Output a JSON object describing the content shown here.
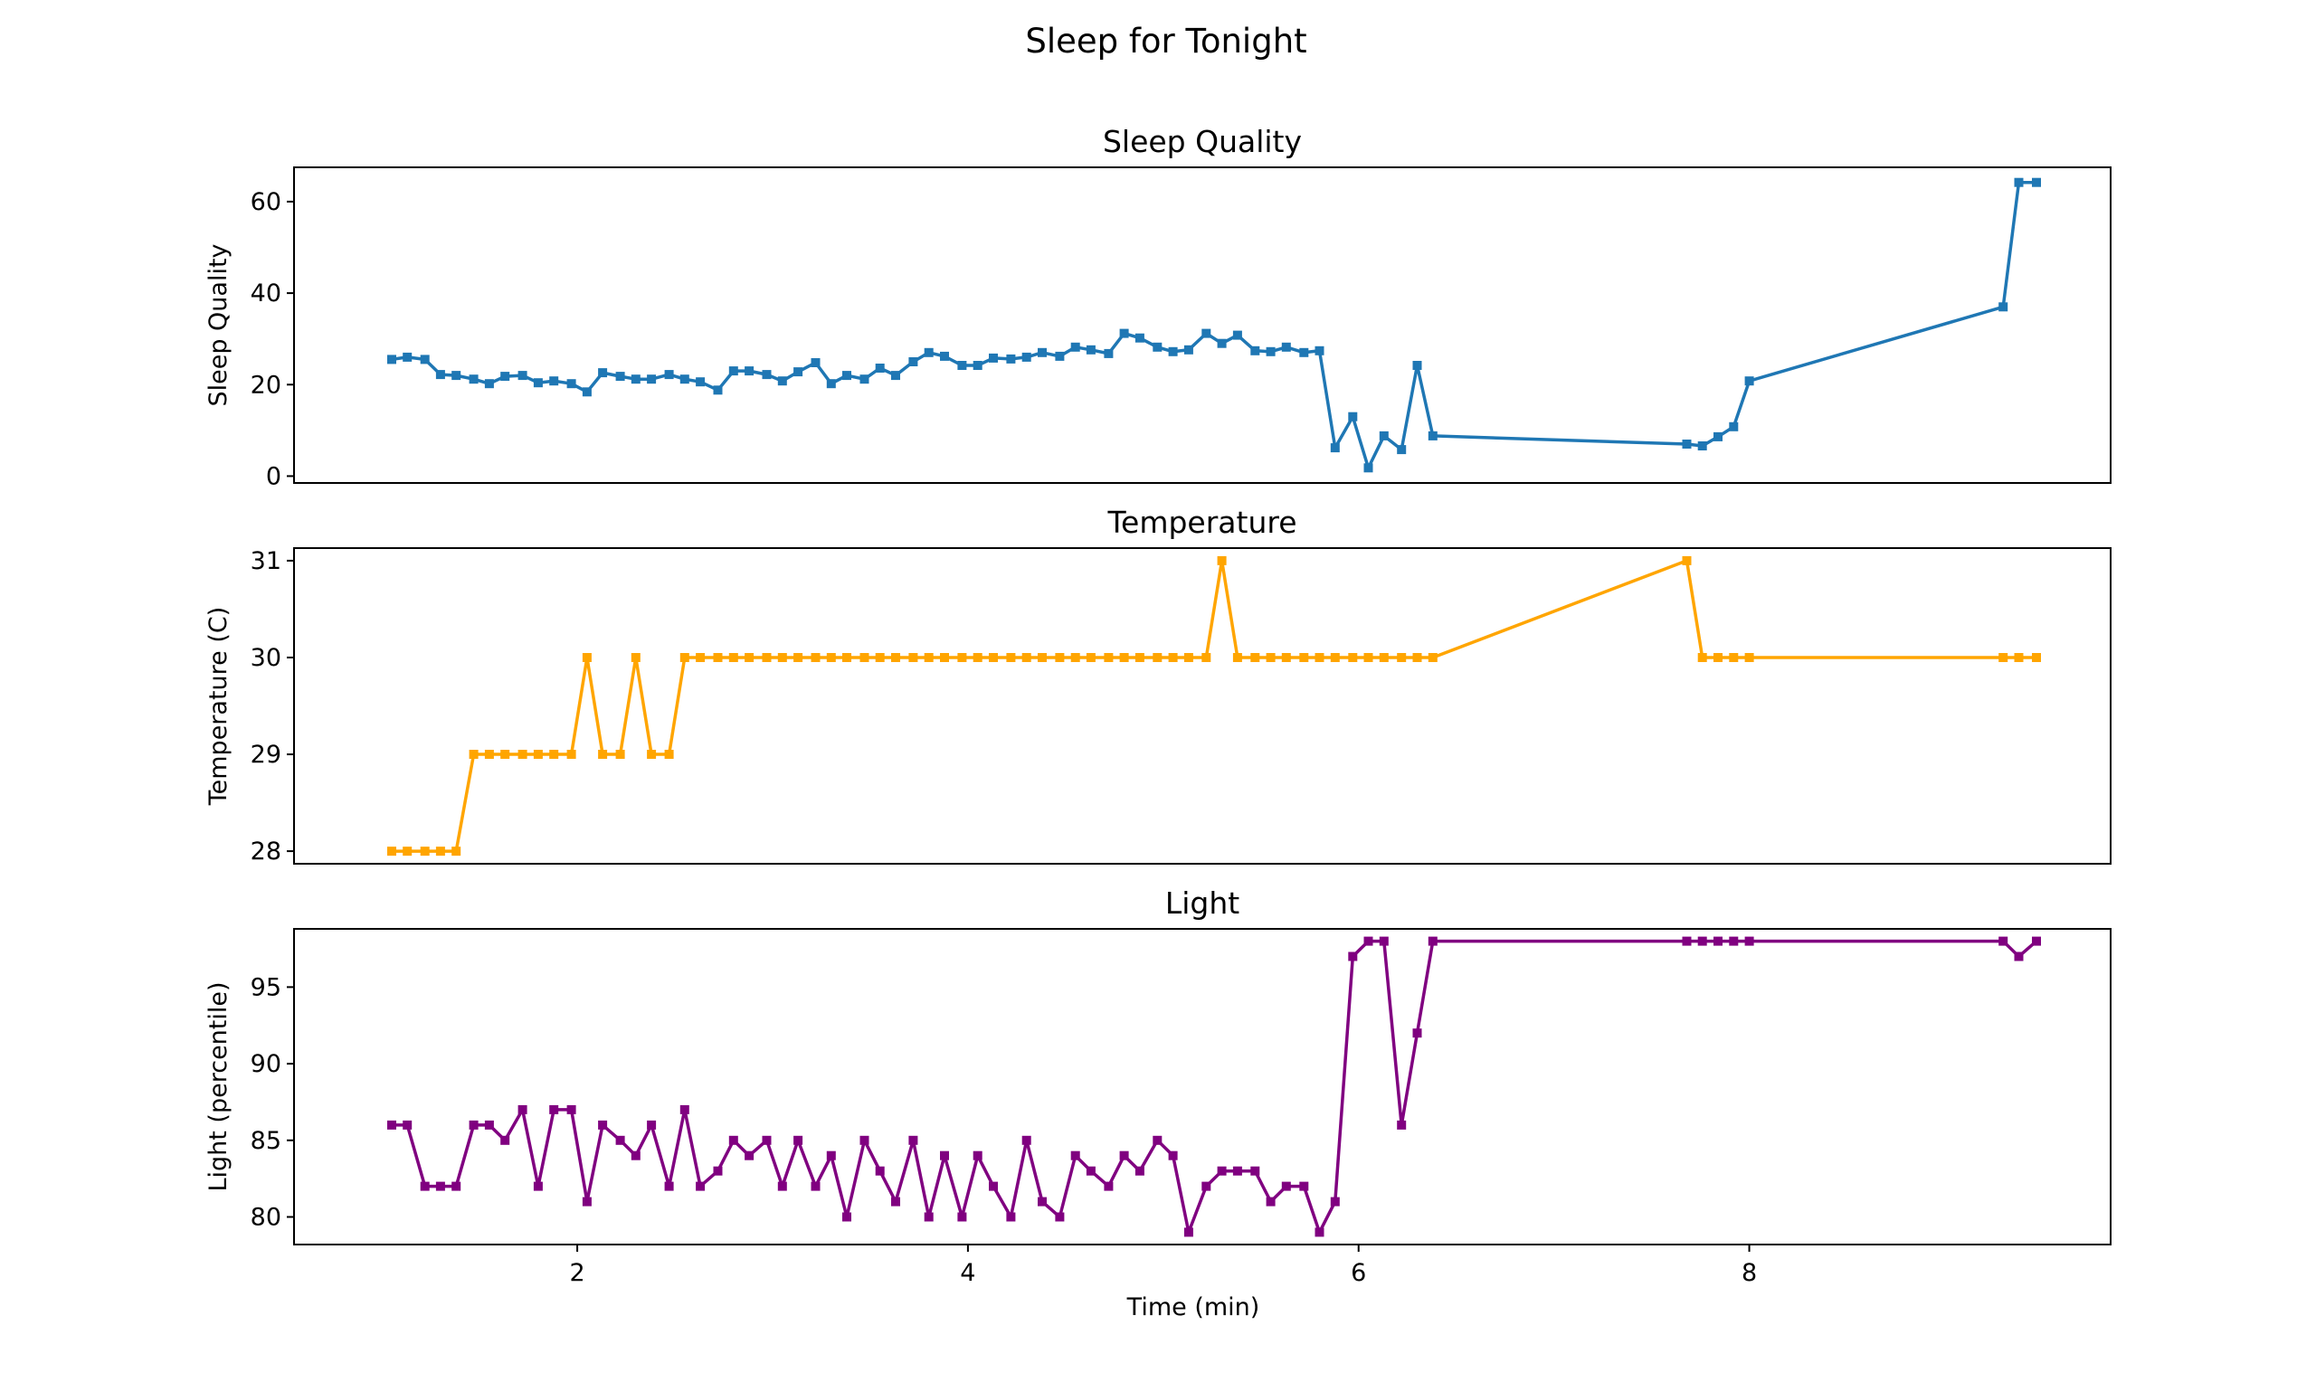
{
  "chart_data": {
    "title": "Sleep for Tonight",
    "xlabel": "Time (min)",
    "xlim": [
      0.55,
      9.85
    ],
    "xticks": [
      2,
      4,
      6,
      8
    ],
    "x": [
      1.05,
      1.13,
      1.22,
      1.3,
      1.38,
      1.47,
      1.55,
      1.63,
      1.72,
      1.8,
      1.88,
      1.97,
      2.05,
      2.13,
      2.22,
      2.3,
      2.38,
      2.47,
      2.55,
      2.63,
      2.72,
      2.8,
      2.88,
      2.97,
      3.05,
      3.13,
      3.22,
      3.3,
      3.38,
      3.47,
      3.55,
      3.63,
      3.72,
      3.8,
      3.88,
      3.97,
      4.05,
      4.13,
      4.22,
      4.3,
      4.38,
      4.47,
      4.55,
      4.63,
      4.72,
      4.8,
      4.88,
      4.97,
      5.05,
      5.13,
      5.22,
      5.3,
      5.38,
      5.47,
      5.55,
      5.63,
      5.72,
      5.8,
      5.88,
      5.97,
      6.05,
      6.13,
      6.22,
      6.3,
      6.38,
      7.68,
      7.76,
      7.84,
      7.92,
      8.0,
      9.3,
      9.38,
      9.47
    ],
    "panels": [
      {
        "title": "Sleep Quality",
        "ylabel": "Sleep Quality",
        "color": "#1f77b4",
        "ylim": [
          -1.5,
          67.5
        ],
        "yticks": [
          0,
          20,
          40,
          60
        ],
        "values": [
          25.5,
          26,
          25.5,
          22.2,
          22,
          21.2,
          20.2,
          21.8,
          22,
          20.4,
          20.8,
          20.2,
          18.4,
          22.6,
          21.8,
          21.2,
          21.2,
          22.2,
          21.2,
          20.6,
          18.8,
          23,
          23,
          22.2,
          20.8,
          22.8,
          24.8,
          20.2,
          22,
          21.2,
          23.6,
          22,
          25,
          27,
          26.2,
          24.2,
          24.2,
          25.8,
          25.6,
          26,
          27,
          26.2,
          28.2,
          27.6,
          26.8,
          31.2,
          30.2,
          28.2,
          27.2,
          27.6,
          31.2,
          29,
          30.8,
          27.4,
          27.2,
          28.2,
          27,
          27.4,
          6.2,
          13,
          1.8,
          8.8,
          5.8,
          24.2,
          8.8,
          7,
          6.6,
          8.6,
          10.8,
          20.8,
          37,
          64.2,
          64.2
        ]
      },
      {
        "title": "Temperature",
        "ylabel": "Temperature (C)",
        "color": "#ffa500",
        "ylim": [
          27.87,
          31.13
        ],
        "yticks": [
          28,
          29,
          30,
          31
        ],
        "values": [
          28,
          28,
          28,
          28,
          28,
          29,
          29,
          29,
          29,
          29,
          29,
          29,
          30,
          29,
          29,
          30,
          29,
          29,
          30,
          30,
          30,
          30,
          30,
          30,
          30,
          30,
          30,
          30,
          30,
          30,
          30,
          30,
          30,
          30,
          30,
          30,
          30,
          30,
          30,
          30,
          30,
          30,
          30,
          30,
          30,
          30,
          30,
          30,
          30,
          30,
          30,
          31,
          30,
          30,
          30,
          30,
          30,
          30,
          30,
          30,
          30,
          30,
          30,
          30,
          30,
          31,
          30,
          30,
          30,
          30,
          30,
          30,
          30
        ]
      },
      {
        "title": "Light",
        "ylabel": "Light (percentile)",
        "color": "#800080",
        "ylim": [
          78.2,
          98.8
        ],
        "yticks": [
          80,
          85,
          90,
          95
        ],
        "values": [
          86,
          86,
          82,
          82,
          82,
          86,
          86,
          85,
          87,
          82,
          87,
          87,
          81,
          86,
          85,
          84,
          86,
          82,
          87,
          82,
          83,
          85,
          84,
          85,
          82,
          85,
          82,
          84,
          80,
          85,
          83,
          81,
          85,
          80,
          84,
          80,
          84,
          82,
          80,
          85,
          81,
          80,
          84,
          83,
          82,
          84,
          83,
          85,
          84,
          79,
          82,
          83,
          83,
          83,
          81,
          82,
          82,
          79,
          81,
          97,
          98,
          98,
          86,
          92,
          98,
          98,
          98,
          98,
          98,
          98,
          98,
          97,
          98
        ]
      }
    ]
  }
}
